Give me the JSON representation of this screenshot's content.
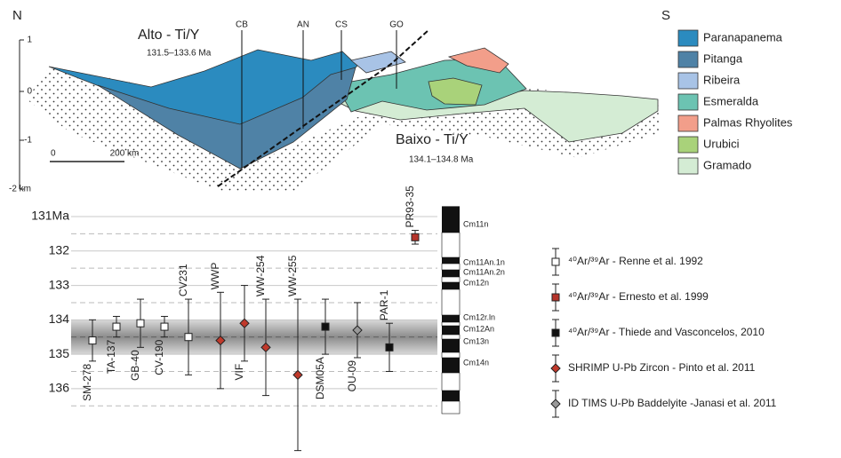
{
  "cross_section": {
    "north": "N",
    "south": "S",
    "upper_title": "Alto - Ti/Y",
    "upper_range": "131.5–133.6 Ma",
    "lower_title": "Baixo - Ti/Y",
    "lower_range": "134.1–134.8 Ma",
    "wells": [
      "CB",
      "AN",
      "CS",
      "GO"
    ],
    "depth_labels": [
      "1",
      "0",
      "-1",
      "-2 km"
    ],
    "scale_labels": [
      "0",
      "200 km"
    ],
    "legend": [
      {
        "name": "Paranapanema",
        "color": "#2b8bbf"
      },
      {
        "name": "Pitanga",
        "color": "#4f82a6"
      },
      {
        "name": "Ribeira",
        "color": "#a8c3e6"
      },
      {
        "name": "Esmeralda",
        "color": "#6cc3b2"
      },
      {
        "name": "Palmas Rhyolites",
        "color": "#f29e8a"
      },
      {
        "name": "Urubici",
        "color": "#a9d27a"
      },
      {
        "name": "Gramado",
        "color": "#d4ecd4"
      }
    ]
  },
  "chart_data": {
    "type": "errorbar",
    "categories": [
      "SM-278",
      "TA-137",
      "GB-40",
      "CV-190",
      "CV231",
      "WWP",
      "VIF",
      "WW-254",
      "WW-255",
      "DSM05A",
      "OU-09",
      "PAR-1",
      "PR93-35"
    ],
    "ylim": [
      136.7,
      130.7
    ],
    "yticks": [
      {
        "value": 131,
        "label": "131Ma"
      },
      132,
      133,
      134,
      135,
      136
    ],
    "yminor": [
      131.5,
      132.5,
      133.5,
      134.5,
      135.5,
      136.5
    ],
    "band": [
      134.0,
      135.0
    ],
    "band_center": 134.5,
    "chrons": [
      "Cm11n",
      "Cm11An.1n",
      "Cm11An.2n",
      "Cm12n",
      "Cm12r.ln",
      "Cm12An",
      "Cm13n",
      "Cm14n"
    ],
    "series": [
      {
        "name": "⁴⁰Ar/³⁹Ar - Renne et al. 1992",
        "marker": "square",
        "color": "#ffffff",
        "values": [
          134.6,
          134.2,
          134.1,
          134.2,
          134.5,
          null,
          null,
          null,
          null,
          null,
          null,
          null,
          null
        ],
        "errors": [
          0.6,
          0.3,
          0.7,
          0.3,
          1.1,
          null,
          null,
          null,
          null,
          null,
          null,
          null,
          null
        ]
      },
      {
        "name": "⁴⁰Ar/³⁹Ar - Ernesto et al. 1999",
        "marker": "square",
        "color": "#b5332a",
        "values": [
          null,
          null,
          null,
          null,
          null,
          null,
          null,
          null,
          null,
          null,
          null,
          null,
          131.6
        ],
        "errors": [
          null,
          null,
          null,
          null,
          null,
          null,
          null,
          null,
          null,
          null,
          null,
          null,
          0.2
        ]
      },
      {
        "name": "⁴⁰Ar/³⁹Ar - Thiede and Vasconcelos, 2010",
        "marker": "square",
        "color": "#111111",
        "values": [
          null,
          null,
          null,
          null,
          null,
          null,
          null,
          null,
          null,
          134.2,
          null,
          134.8,
          null
        ],
        "errors": [
          null,
          null,
          null,
          null,
          null,
          null,
          null,
          null,
          null,
          0.8,
          null,
          0.7,
          null
        ]
      },
      {
        "name": "SHRIMP U-Pb Zircon - Pinto et al. 2011",
        "marker": "diamond",
        "color": "#c0392b",
        "values": [
          null,
          null,
          null,
          null,
          null,
          134.6,
          134.1,
          134.8,
          135.6,
          null,
          null,
          null,
          null
        ],
        "errors": [
          null,
          null,
          null,
          null,
          null,
          1.4,
          1.1,
          1.4,
          2.2,
          null,
          null,
          null,
          null
        ]
      },
      {
        "name": "ID TIMS U-Pb Baddelyite -Janasi et al. 2011",
        "marker": "diamond",
        "color": "#999999",
        "values": [
          null,
          null,
          null,
          null,
          null,
          null,
          null,
          null,
          null,
          null,
          134.3,
          null,
          null
        ],
        "errors": [
          null,
          null,
          null,
          null,
          null,
          null,
          null,
          null,
          null,
          null,
          0.8,
          null,
          null
        ]
      }
    ]
  }
}
